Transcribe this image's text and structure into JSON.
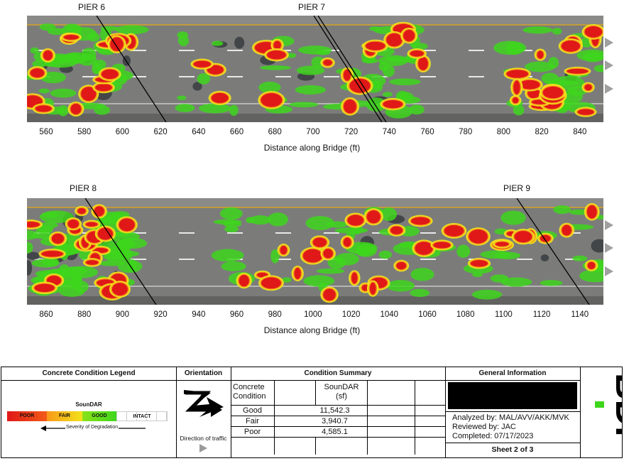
{
  "top_plot": {
    "piers": [
      {
        "label": "PIER 6"
      },
      {
        "label": "PIER 7"
      }
    ],
    "ticks": [
      "560",
      "580",
      "600",
      "620",
      "640",
      "660",
      "680",
      "700",
      "720",
      "740",
      "760",
      "780",
      "800",
      "820",
      "840"
    ],
    "axis_title": "Distance along Bridge (ft)"
  },
  "bottom_plot": {
    "piers": [
      {
        "label": "PIER 8"
      },
      {
        "label": "PIER 9"
      }
    ],
    "ticks": [
      "860",
      "880",
      "900",
      "920",
      "940",
      "960",
      "980",
      "1000",
      "1020",
      "1040",
      "1060",
      "1080",
      "1100",
      "1120",
      "1140"
    ],
    "axis_title": "Distance along Bridge (ft)"
  },
  "legend": {
    "header": "Concrete Condition Legend",
    "title": "SounDAR",
    "poor": "POOR",
    "fair": "FAIR",
    "good": "GOOD",
    "intact": "INTACT",
    "arrow_text": "Severity of Degradation"
  },
  "orientation": {
    "header": "Orientation",
    "traffic_text": "Direction of traffic"
  },
  "summary": {
    "header": "Condition Summary",
    "col1": "Concrete Condition",
    "col2": "SounDAR (sf)",
    "rows": [
      {
        "condition": "Good",
        "value": "11,542.3"
      },
      {
        "condition": "Fair",
        "value": "3,940.7"
      },
      {
        "condition": "Poor",
        "value": "4,585.1"
      }
    ]
  },
  "general": {
    "header": "General Information",
    "analyzed": "Analyzed by:  MAL/AVV/AKK/MVK",
    "reviewed": "Reviewed by: JAC",
    "completed": "Completed: 07/17/2023",
    "sheet": "Sheet 2 of 3"
  },
  "logo": {
    "text": "BDI"
  },
  "colors": {
    "poor": "#e01818",
    "fair": "#f2e21a",
    "good": "#3ed61c",
    "deck": "#7a7a7a",
    "lane_line": "#d7a526"
  }
}
